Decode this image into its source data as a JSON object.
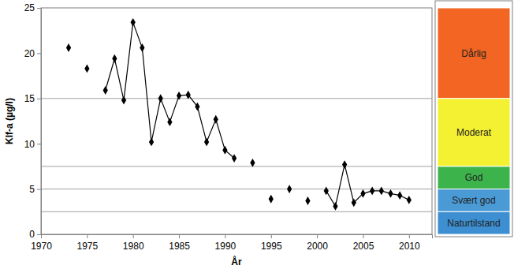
{
  "chart_data": {
    "type": "line",
    "marker": "diamond",
    "color": "#000000",
    "x_label": "År",
    "y_label": "Klf-a (µg/l)",
    "x": [
      1973,
      1974,
      1975,
      1976,
      1977,
      1978,
      1979,
      1980,
      1981,
      1982,
      1983,
      1984,
      1985,
      1986,
      1987,
      1988,
      1989,
      1990,
      1991,
      1992,
      1993,
      1994,
      1995,
      1996,
      1997,
      1998,
      1999,
      2000,
      2001,
      2002,
      2003,
      2004,
      2005,
      2006,
      2007,
      2008,
      2009,
      2010
    ],
    "values": [
      20.6,
      null,
      18.3,
      null,
      15.9,
      19.4,
      14.8,
      23.4,
      20.6,
      10.2,
      15.0,
      12.4,
      15.3,
      15.4,
      14.1,
      10.2,
      12.7,
      9.3,
      8.4,
      null,
      7.9,
      null,
      3.9,
      null,
      5.0,
      null,
      3.7,
      null,
      4.8,
      3.1,
      7.7,
      3.5,
      4.5,
      4.8,
      4.8,
      4.5,
      4.3,
      3.8
    ],
    "xlim": [
      1970,
      2012.5
    ],
    "xticks": [
      1970,
      1975,
      1980,
      1985,
      1990,
      1995,
      2000,
      2005,
      2010
    ],
    "ylim": [
      0,
      25
    ],
    "yticks": [
      0,
      5,
      10,
      15,
      20,
      25
    ],
    "classes": [
      {
        "name": "Dårlig",
        "from": 15,
        "to": 25,
        "color": "#f26522"
      },
      {
        "name": "Moderat",
        "from": 7.5,
        "to": 15,
        "color": "#f4f032"
      },
      {
        "name": "God",
        "from": 5,
        "to": 7.5,
        "color": "#3cb44b"
      },
      {
        "name": "Svært god",
        "from": 2.5,
        "to": 5,
        "color": "#4a9ad6"
      },
      {
        "name": "Naturtilstand",
        "from": 0,
        "to": 2.5,
        "color": "#3d8fd1"
      }
    ]
  }
}
